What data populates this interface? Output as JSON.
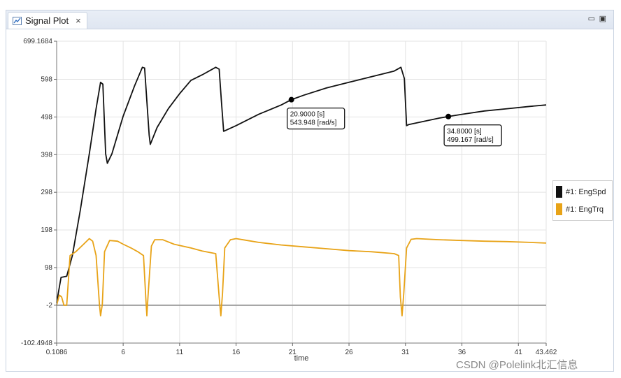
{
  "tab": {
    "title": "Signal Plot",
    "close_glyph": "×"
  },
  "window_controls": {
    "minimize": "▭",
    "maximize": "▣"
  },
  "watermark": "CSDN @Polelink北汇信息",
  "colors": {
    "engspd": "#111111",
    "engtrq": "#e8a317",
    "zero_line": "#9e9e9e",
    "grid": "#e3e3e3"
  },
  "chart_data": {
    "type": "line",
    "xlabel": "time",
    "xlim": [
      0.1086,
      43.462
    ],
    "ylim": [
      -102.4948,
      699.1684
    ],
    "x_ticks": [
      "0.1086",
      "6",
      "11",
      "16",
      "21",
      "26",
      "31",
      "36",
      "41",
      "43.462"
    ],
    "y_ticks": [
      "699.1684",
      "598",
      "498",
      "398",
      "298",
      "198",
      "98",
      "-2",
      "-102.4948"
    ],
    "reference_line": -2,
    "series": [
      {
        "name": "#1: EngSpd",
        "color": "#111111",
        "points": [
          [
            0.1086,
            5
          ],
          [
            0.5,
            72
          ],
          [
            1.0,
            75
          ],
          [
            1.5,
            130
          ],
          [
            2.2,
            250
          ],
          [
            3.0,
            400
          ],
          [
            3.6,
            520
          ],
          [
            4.0,
            590
          ],
          [
            4.2,
            585
          ],
          [
            4.45,
            400
          ],
          [
            4.6,
            375
          ],
          [
            5.0,
            400
          ],
          [
            6.0,
            500
          ],
          [
            7.0,
            580
          ],
          [
            7.7,
            630
          ],
          [
            7.9,
            628
          ],
          [
            8.3,
            450
          ],
          [
            8.4,
            425
          ],
          [
            9.0,
            470
          ],
          [
            10.0,
            520
          ],
          [
            11.0,
            560
          ],
          [
            12.0,
            595
          ],
          [
            13.0,
            610
          ],
          [
            14.2,
            630
          ],
          [
            14.5,
            625
          ],
          [
            14.7,
            540
          ],
          [
            14.9,
            460
          ],
          [
            16.0,
            475
          ],
          [
            18.0,
            505
          ],
          [
            20.0,
            530
          ],
          [
            20.9,
            543.948
          ],
          [
            22.0,
            556
          ],
          [
            24.0,
            575
          ],
          [
            26.0,
            590
          ],
          [
            28.0,
            605
          ],
          [
            30.0,
            620
          ],
          [
            30.6,
            630
          ],
          [
            30.9,
            600
          ],
          [
            31.1,
            475
          ],
          [
            31.3,
            478
          ],
          [
            34.0,
            495
          ],
          [
            34.8,
            499.167
          ],
          [
            36.0,
            505
          ],
          [
            38.0,
            514
          ],
          [
            40.0,
            520
          ],
          [
            42.0,
            526
          ],
          [
            43.462,
            530
          ]
        ]
      },
      {
        "name": "#1: EngTrq",
        "color": "#e8a317",
        "points": [
          [
            0.1086,
            -2
          ],
          [
            0.35,
            25
          ],
          [
            0.55,
            20
          ],
          [
            0.75,
            -2
          ],
          [
            1.0,
            -2
          ],
          [
            1.3,
            130
          ],
          [
            1.8,
            140
          ],
          [
            2.5,
            160
          ],
          [
            3.0,
            175
          ],
          [
            3.3,
            168
          ],
          [
            3.6,
            130
          ],
          [
            3.9,
            0
          ],
          [
            4.0,
            -30
          ],
          [
            4.15,
            0
          ],
          [
            4.35,
            140
          ],
          [
            4.8,
            170
          ],
          [
            5.5,
            168
          ],
          [
            6.0,
            160
          ],
          [
            6.7,
            150
          ],
          [
            7.3,
            140
          ],
          [
            7.8,
            130
          ],
          [
            8.0,
            20
          ],
          [
            8.1,
            -30
          ],
          [
            8.2,
            20
          ],
          [
            8.5,
            155
          ],
          [
            8.8,
            172
          ],
          [
            9.5,
            172
          ],
          [
            10.5,
            160
          ],
          [
            12.0,
            150
          ],
          [
            13.0,
            142
          ],
          [
            14.2,
            135
          ],
          [
            14.5,
            20
          ],
          [
            14.65,
            -30
          ],
          [
            14.8,
            30
          ],
          [
            15.0,
            150
          ],
          [
            15.5,
            172
          ],
          [
            16.0,
            175
          ],
          [
            17.0,
            170
          ],
          [
            18.0,
            165
          ],
          [
            20.0,
            158
          ],
          [
            22.0,
            153
          ],
          [
            24.0,
            148
          ],
          [
            26.0,
            143
          ],
          [
            28.0,
            140
          ],
          [
            30.0,
            135
          ],
          [
            30.4,
            130
          ],
          [
            30.55,
            20
          ],
          [
            30.7,
            -30
          ],
          [
            30.85,
            30
          ],
          [
            31.1,
            150
          ],
          [
            31.5,
            173
          ],
          [
            32.0,
            175
          ],
          [
            34.0,
            172
          ],
          [
            36.0,
            170
          ],
          [
            38.0,
            168
          ],
          [
            40.0,
            167
          ],
          [
            42.0,
            165
          ],
          [
            43.462,
            163
          ]
        ]
      }
    ],
    "markers": [
      {
        "series": 0,
        "x": 20.9,
        "y": 543.948,
        "label_lines": [
          "20.9000 [s]",
          "543.948 [rad/s]"
        ]
      },
      {
        "series": 0,
        "x": 34.8,
        "y": 499.167,
        "label_lines": [
          "34.8000 [s]",
          "499.167 [rad/s]"
        ]
      }
    ],
    "legend": "right",
    "grid": true
  }
}
